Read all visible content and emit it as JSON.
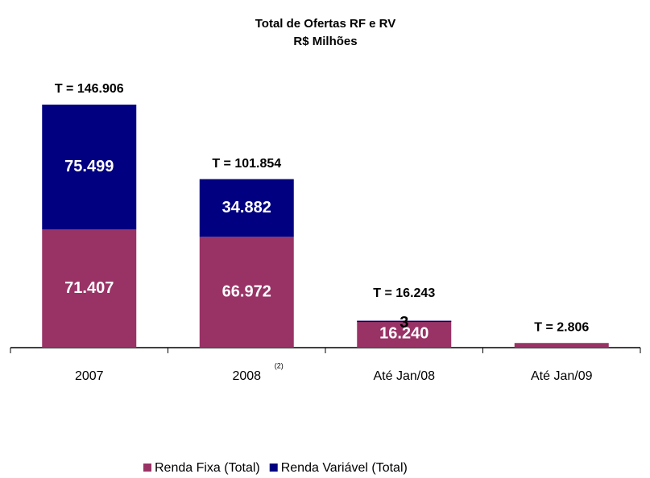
{
  "chart_data": {
    "type": "stacked_bar",
    "title": "Total de Ofertas RF e RV",
    "subtitle": "R$ Milhões",
    "categories": [
      "2007",
      "2008",
      "Até Jan/08",
      "Até Jan/09"
    ],
    "category_note": {
      "index": 1,
      "text": "(2)"
    },
    "series": [
      {
        "name": "Renda Fixa (Total)",
        "color": "#993366",
        "values": [
          71407,
          66972,
          16240,
          2806
        ],
        "value_labels": [
          "71.407",
          "66.972",
          "16.240",
          null
        ]
      },
      {
        "name": "Renda Variável (Total)",
        "color": "#000080",
        "values": [
          75499,
          34882,
          3,
          null
        ],
        "value_labels": [
          "75.499",
          "34.882",
          "3",
          null
        ]
      }
    ],
    "total_labels": [
      "T = 146.906",
      "T = 101.854",
      "T = 16.243",
      "T = 2.806"
    ],
    "legend": "bottom"
  }
}
